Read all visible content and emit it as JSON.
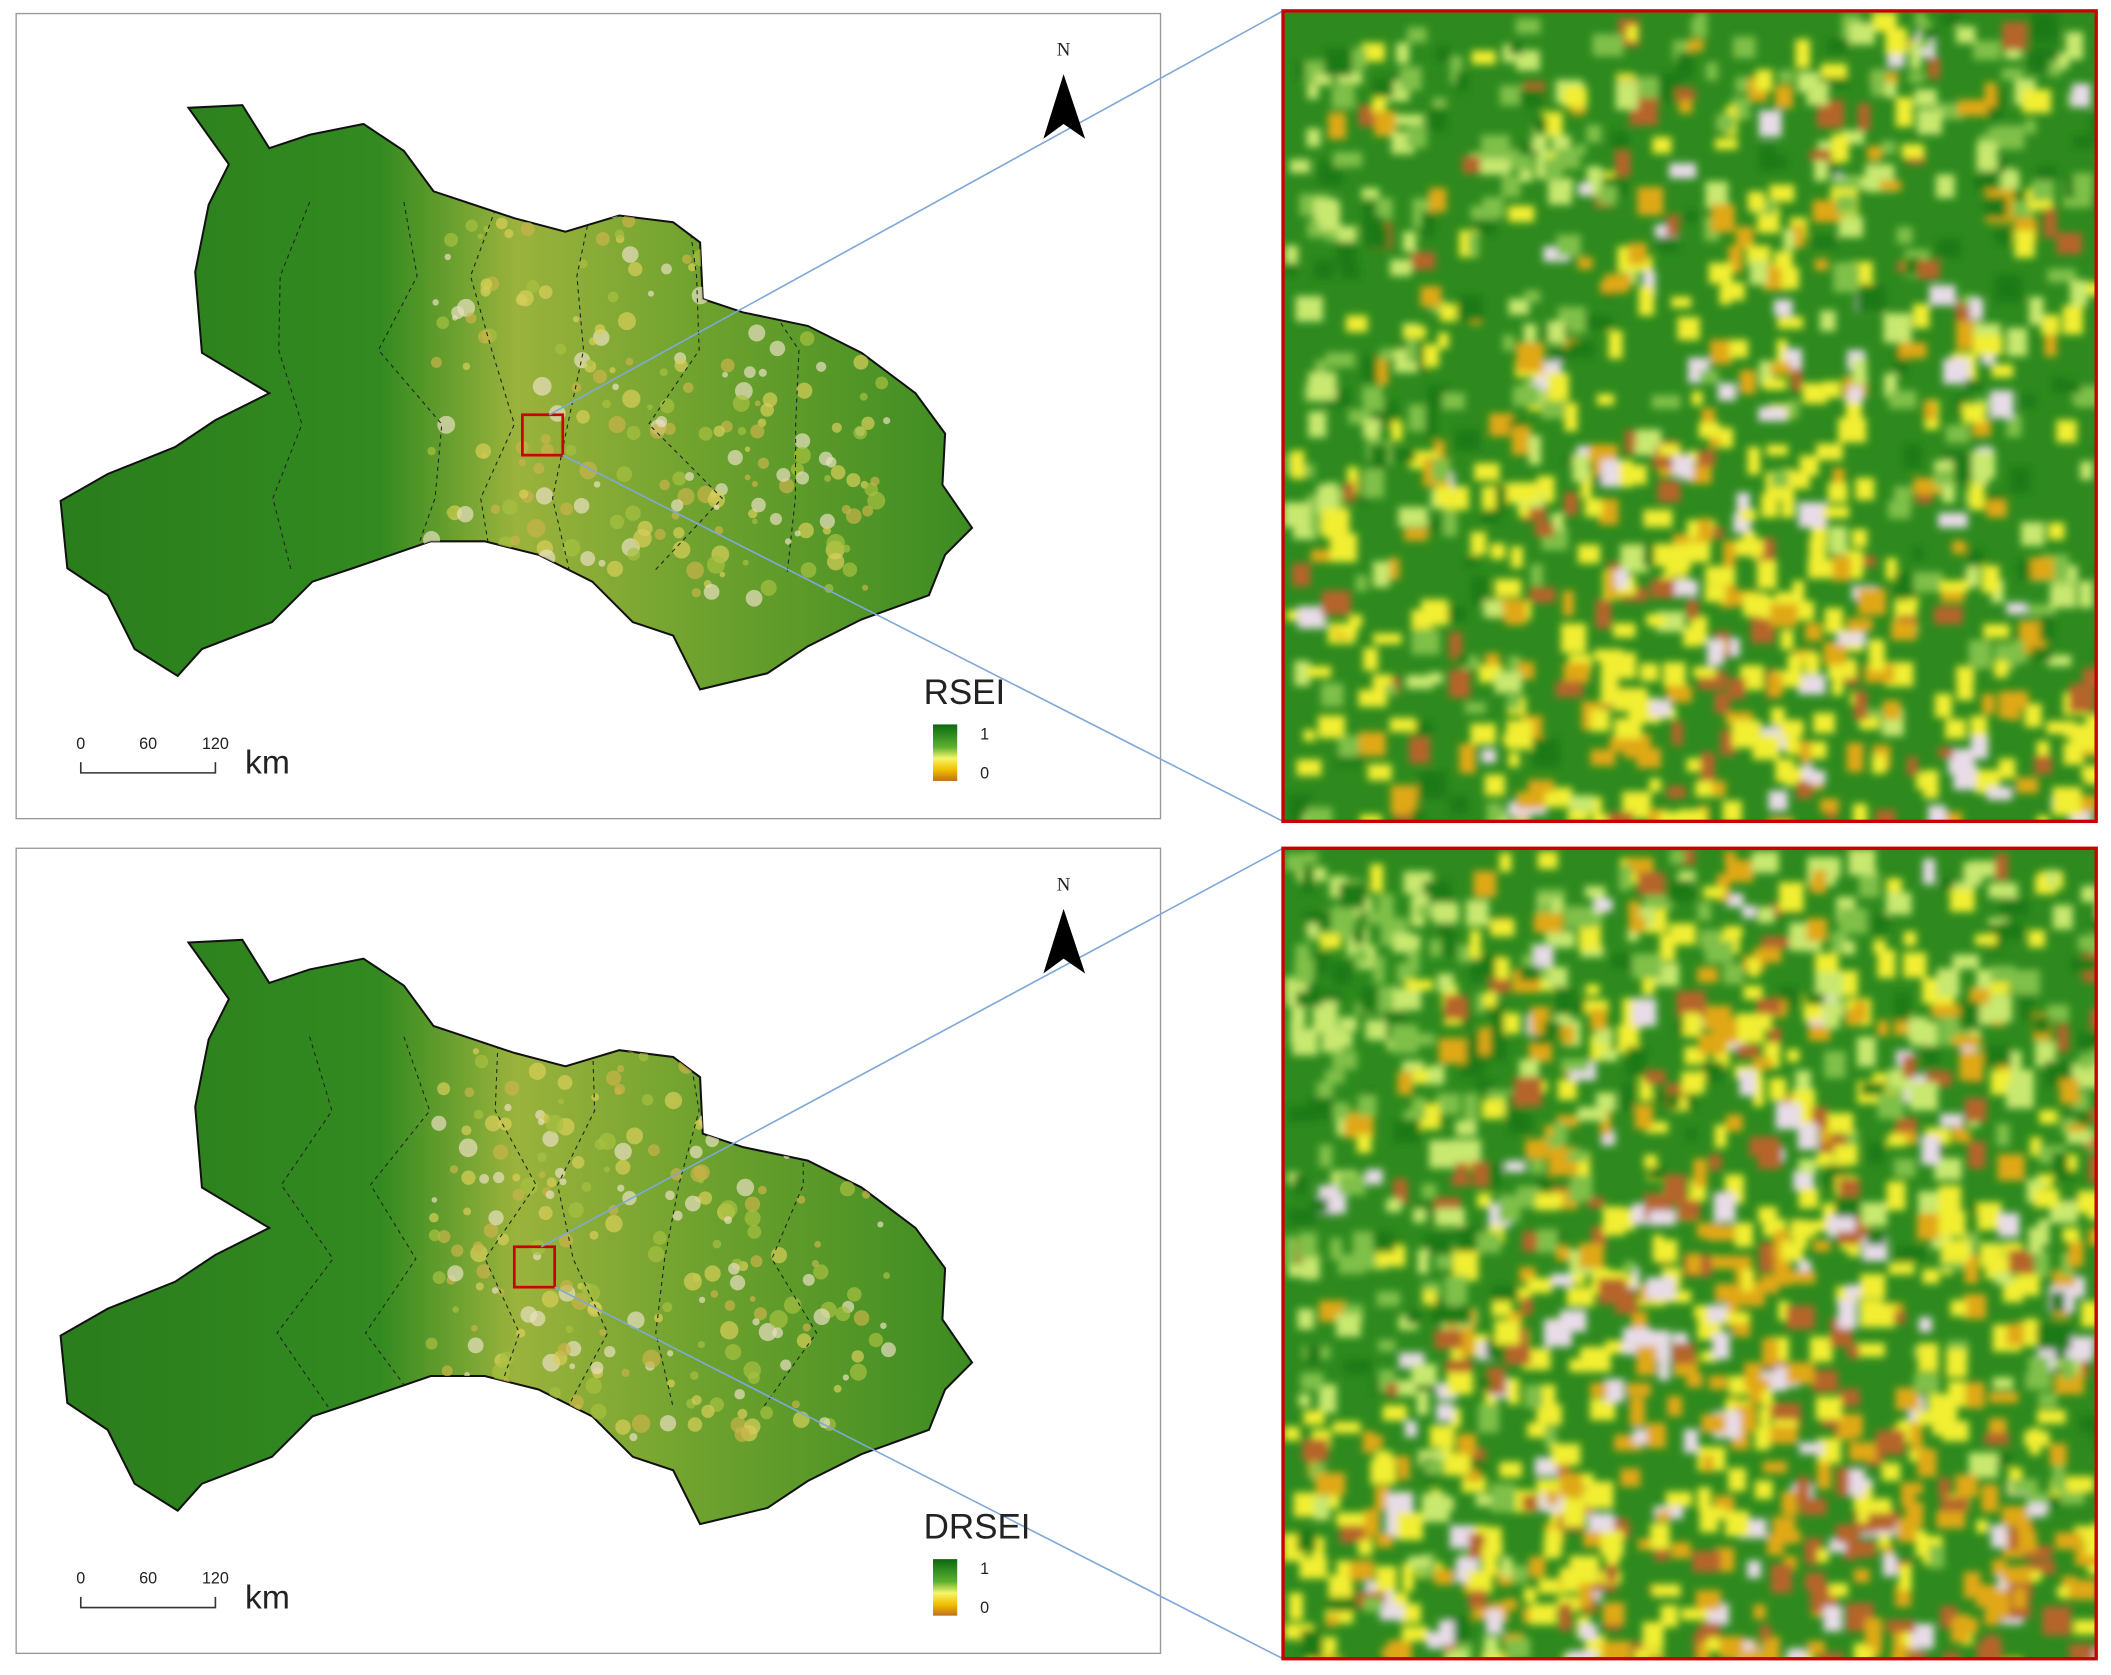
{
  "panels": [
    {
      "north": "N",
      "legend": {
        "title": "RSEI",
        "max": 1,
        "min": 0
      },
      "scale_bar": {
        "ticks": [
          0,
          60,
          120
        ],
        "unit": "km"
      }
    },
    {
      "north": "N",
      "legend": {
        "title": "DRSEI",
        "max": 1,
        "min": 0
      },
      "scale_bar": {
        "ticks": [
          0,
          60,
          120
        ],
        "unit": "km"
      }
    }
  ]
}
